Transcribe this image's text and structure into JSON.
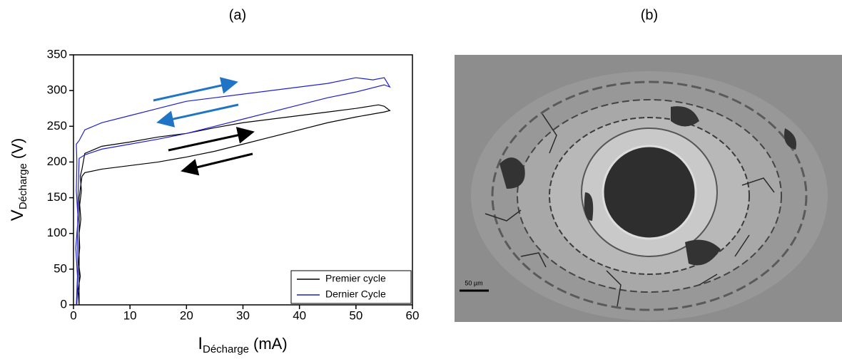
{
  "panels": [
    "(a)",
    "(b)"
  ],
  "chart_data": {
    "type": "line",
    "x_label": {
      "main": "I",
      "sub": "Décharge",
      "unit": "(mA)"
    },
    "y_label": {
      "main": "V",
      "sub": "Décharge",
      "unit": "(V)"
    },
    "xlim": [
      0,
      60
    ],
    "xticks": [
      0,
      10,
      20,
      30,
      40,
      50,
      60
    ],
    "ylim": [
      0,
      350
    ],
    "yticks": [
      0,
      50,
      100,
      150,
      200,
      250,
      300,
      350
    ],
    "legend": "lower right",
    "series": [
      {
        "name": "Premier cycle",
        "color": "#000000",
        "x": [
          1,
          0.8,
          1.2,
          0.9,
          1.1,
          1,
          1.3,
          1.1,
          1.4,
          1.2,
          1.5,
          2,
          5,
          10,
          15,
          20,
          25,
          30,
          35,
          40,
          45,
          50,
          54,
          55,
          56,
          55,
          50,
          45,
          40,
          35,
          30,
          25,
          20,
          15,
          10,
          5,
          2,
          1.5,
          1,
          1,
          1,
          1
        ],
        "values": [
          0,
          20,
          40,
          60,
          80,
          100,
          120,
          140,
          160,
          180,
          190,
          212,
          222,
          228,
          235,
          240,
          248,
          255,
          260,
          265,
          270,
          275,
          280,
          278,
          272,
          270,
          263,
          255,
          245,
          235,
          225,
          215,
          207,
          200,
          195,
          190,
          185,
          180,
          150,
          100,
          50,
          0
        ]
      },
      {
        "name": "Dernier Cycle",
        "color": "#1f1fd0",
        "x": [
          0.5,
          0.7,
          0.4,
          0.8,
          0.5,
          0.6,
          0.5,
          1,
          2,
          5,
          10,
          15,
          20,
          25,
          30,
          35,
          40,
          45,
          50,
          53,
          55,
          56,
          55,
          50,
          45,
          40,
          35,
          30,
          25,
          20,
          15,
          10,
          5,
          2,
          1,
          0.8,
          0.7,
          0.8,
          0.6
        ],
        "values": [
          0,
          40,
          80,
          120,
          160,
          200,
          225,
          230,
          245,
          255,
          265,
          275,
          285,
          290,
          295,
          300,
          305,
          310,
          318,
          315,
          318,
          305,
          308,
          298,
          290,
          280,
          270,
          260,
          250,
          240,
          232,
          225,
          218,
          210,
          205,
          150,
          100,
          50,
          0
        ]
      }
    ]
  },
  "image": {
    "scale_bar": "50 µm"
  }
}
